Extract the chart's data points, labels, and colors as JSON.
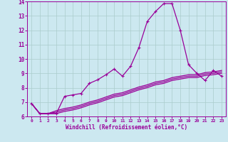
{
  "title": "",
  "xlabel": "Windchill (Refroidissement éolien,°C)",
  "xlim": [
    -0.5,
    23.5
  ],
  "ylim": [
    6,
    14
  ],
  "yticks": [
    6,
    7,
    8,
    9,
    10,
    11,
    12,
    13,
    14
  ],
  "xticks": [
    0,
    1,
    2,
    3,
    4,
    5,
    6,
    7,
    8,
    9,
    10,
    11,
    12,
    13,
    14,
    15,
    16,
    17,
    18,
    19,
    20,
    21,
    22,
    23
  ],
  "bg_color": "#cce8f0",
  "line_color": "#990099",
  "grid_color": "#aacccc",
  "lines": [
    [
      6.9,
      6.2,
      6.2,
      6.2,
      7.4,
      7.5,
      7.6,
      8.3,
      8.55,
      8.9,
      9.3,
      8.8,
      9.5,
      10.8,
      12.6,
      13.3,
      13.85,
      13.85,
      12.0,
      9.6,
      9.0,
      8.5,
      9.2,
      8.8
    ],
    [
      6.9,
      6.2,
      6.2,
      6.4,
      6.55,
      6.65,
      6.8,
      7.0,
      7.15,
      7.35,
      7.55,
      7.65,
      7.85,
      8.05,
      8.2,
      8.4,
      8.5,
      8.7,
      8.8,
      8.9,
      8.9,
      9.05,
      9.1,
      9.2
    ],
    [
      6.9,
      6.2,
      6.2,
      6.3,
      6.45,
      6.55,
      6.7,
      6.9,
      7.05,
      7.25,
      7.45,
      7.55,
      7.75,
      7.95,
      8.1,
      8.3,
      8.4,
      8.6,
      8.7,
      8.8,
      8.8,
      8.95,
      9.0,
      9.1
    ],
    [
      6.9,
      6.2,
      6.2,
      6.2,
      6.35,
      6.45,
      6.6,
      6.8,
      6.95,
      7.15,
      7.35,
      7.45,
      7.65,
      7.85,
      8.0,
      8.2,
      8.3,
      8.5,
      8.6,
      8.7,
      8.7,
      8.85,
      8.9,
      9.0
    ]
  ]
}
